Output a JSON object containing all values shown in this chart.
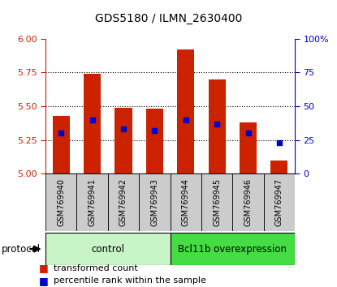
{
  "title": "GDS5180 / ILMN_2630400",
  "samples": [
    "GSM769940",
    "GSM769941",
    "GSM769942",
    "GSM769943",
    "GSM769944",
    "GSM769945",
    "GSM769946",
    "GSM769947"
  ],
  "transformed_count": [
    5.43,
    5.74,
    5.49,
    5.48,
    5.92,
    5.7,
    5.38,
    5.1
  ],
  "percentile_rank": [
    30,
    40,
    33,
    32,
    40,
    37,
    30,
    23
  ],
  "ylim_left": [
    5.0,
    6.0
  ],
  "ylim_right": [
    0,
    100
  ],
  "yticks_left": [
    5.0,
    5.25,
    5.5,
    5.75,
    6.0
  ],
  "yticks_right": [
    0,
    25,
    50,
    75,
    100
  ],
  "left_tick_color": "#cc2200",
  "right_tick_color": "#0000cc",
  "bar_color": "#cc2200",
  "dot_color": "#0000cc",
  "control_label": "control",
  "overexpression_label": "Bcl11b overexpression",
  "protocol_label": "protocol",
  "legend_transformed": "transformed count",
  "legend_percentile": "percentile rank within the sample",
  "control_bg": "#c8f5c8",
  "overexpression_bg": "#44dd44",
  "sample_bg": "#cccccc",
  "bar_bottom": 5.0,
  "bar_width": 0.55,
  "grid_yticks": [
    5.25,
    5.5,
    5.75
  ],
  "title_fontsize": 10,
  "tick_fontsize": 8,
  "label_fontsize": 7,
  "legend_fontsize": 8
}
